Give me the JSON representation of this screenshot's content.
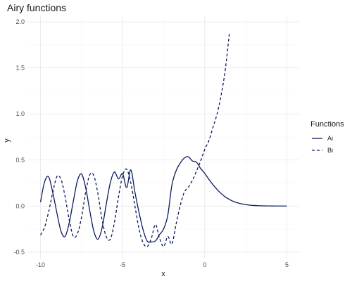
{
  "chart_data": {
    "type": "line",
    "title": "Airy functions",
    "xlabel": "x",
    "ylabel": "y",
    "xlim": [
      -10.75,
      5.75
    ],
    "ylim": [
      -0.57,
      2.07
    ],
    "xticks": [
      -10,
      -5,
      0,
      5
    ],
    "xtick_labels": [
      "-10",
      "-5",
      "0",
      "5"
    ],
    "yticks": [
      -0.5,
      0.0,
      0.5,
      1.0,
      1.5,
      2.0
    ],
    "ytick_labels": [
      "-0.5",
      "0.0",
      "0.5",
      "1.0",
      "1.5",
      "2.0"
    ],
    "grid": true,
    "legend": {
      "title": "Functions",
      "position": "right",
      "entries": [
        {
          "label": "Ai",
          "line": "solid"
        },
        {
          "label": "Bi",
          "line": "dashed"
        }
      ]
    },
    "line_color": "#0b1a5c",
    "series": [
      {
        "name": "Ai",
        "line": "solid",
        "x": [
          -10,
          -9.75,
          -9.5,
          -9.25,
          -9.0,
          -8.75,
          -8.5,
          -8.25,
          -8.0,
          -7.75,
          -7.5,
          -7.25,
          -7.0,
          -6.75,
          -6.5,
          -6.25,
          -6.0,
          -5.75,
          -5.5,
          -5.25,
          -5.0,
          -4.75,
          -4.5,
          -4.25,
          -4.0,
          -3.75,
          -3.5,
          -3.25,
          -3.0,
          -2.75,
          -2.5,
          -2.25,
          -2.0,
          -1.75,
          -1.5,
          -1.25,
          -1.0,
          -0.75,
          -0.5,
          -0.25,
          0.0,
          0.25,
          0.5,
          0.75,
          1.0,
          1.25,
          1.5,
          1.75,
          2.0,
          2.25,
          2.5,
          2.75,
          3.0,
          3.25,
          3.5,
          3.75,
          4.0,
          4.25,
          4.5,
          4.75,
          5.0
        ],
        "y": [
          0.0424,
          0.2628,
          0.316,
          0.1447,
          -0.0752,
          -0.2744,
          -0.3292,
          -0.1818,
          0.053,
          0.2752,
          0.3479,
          0.2001,
          -0.0499,
          -0.2751,
          -0.3601,
          -0.2371,
          0.0147,
          0.2525,
          0.3693,
          0.2943,
          0.3508,
          0.201,
          0.3925,
          0.15,
          -0.0704,
          -0.26,
          -0.3813,
          -0.39,
          -0.3788,
          -0.31,
          -0.2475,
          -0.1,
          0.2274,
          0.38,
          0.4642,
          0.52,
          0.5356,
          0.49,
          0.4757,
          0.408,
          0.355,
          0.29,
          0.2317,
          0.18,
          0.1353,
          0.099,
          0.0717,
          0.05,
          0.0349,
          0.023,
          0.0157,
          0.01,
          0.0066,
          0.004,
          0.0025,
          0.0015,
          0.001,
          0.0006,
          0.0003,
          0.0002,
          0.0001
        ]
      },
      {
        "name": "Bi",
        "line": "dashed",
        "x": [
          -10,
          -9.75,
          -9.5,
          -9.25,
          -9.0,
          -8.75,
          -8.5,
          -8.25,
          -8.0,
          -7.75,
          -7.5,
          -7.25,
          -7.0,
          -6.75,
          -6.5,
          -6.25,
          -6.0,
          -5.75,
          -5.5,
          -5.25,
          -5.0,
          -4.75,
          -4.5,
          -4.25,
          -4.0,
          -3.75,
          -3.5,
          -3.25,
          -3.0,
          -2.75,
          -2.5,
          -2.25,
          -2.0,
          -1.75,
          -1.5,
          -1.25,
          -1.0,
          -0.75,
          -0.5,
          -0.25,
          0.0,
          0.25,
          0.5,
          0.75,
          1.0,
          1.25,
          1.5
        ],
        "y": [
          -0.3147,
          -0.23,
          -0.06,
          0.15,
          0.32,
          0.29,
          0.1,
          -0.15,
          -0.33,
          -0.3,
          -0.12,
          0.15,
          0.34,
          0.33,
          0.13,
          -0.15,
          -0.33,
          -0.36,
          -0.18,
          0.1,
          0.33,
          0.4,
          0.25,
          0.0,
          -0.25,
          -0.4,
          -0.44,
          -0.35,
          -0.2,
          -0.35,
          -0.44,
          -0.33,
          -0.4121,
          -0.2,
          -0.0,
          0.15,
          0.204,
          0.28,
          0.38,
          0.49,
          0.6149,
          0.71,
          0.8543,
          1.0,
          1.2074,
          1.48,
          1.8789
        ]
      }
    ]
  }
}
